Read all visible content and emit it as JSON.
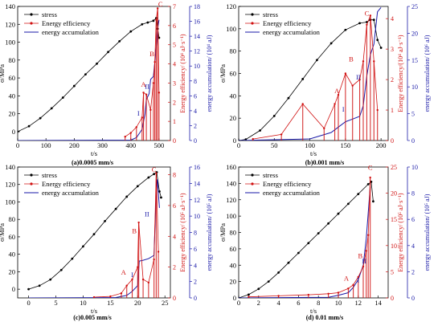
{
  "colors": {
    "stress": "#000000",
    "efficiency": "#d01010",
    "accumulation": "#1a1aa8"
  },
  "legend": [
    "stress",
    "Energy efficiency",
    "energy accumulation"
  ],
  "chart_data": [
    {
      "type": "line",
      "caption": "(a)0.0005 mm/s",
      "xlabel": "t/s",
      "ylabel": "σ/MPa",
      "y2label": "Energy efficiency/ (10⁴ aJ·s⁻¹)",
      "y3label": "energy accumulation/ (10⁴ aJ)",
      "xlim": [
        0,
        540
      ],
      "ylim": [
        -10,
        140
      ],
      "y2lim": [
        0,
        7
      ],
      "y3lim": [
        0,
        18
      ],
      "xticks": [
        0,
        100,
        200,
        300,
        400,
        500
      ],
      "yticks": [
        0,
        20,
        40,
        60,
        80,
        100,
        120,
        140
      ],
      "y2ticks": [
        0,
        1,
        2,
        3,
        4,
        5,
        6,
        7
      ],
      "y3ticks": [
        0,
        2,
        4,
        6,
        8,
        10,
        12,
        14,
        16,
        18
      ],
      "series": [
        {
          "name": "stress",
          "x": [
            0,
            40,
            80,
            120,
            160,
            200,
            240,
            280,
            320,
            360,
            400,
            440,
            460,
            480,
            490,
            495,
            500
          ],
          "y": [
            0,
            6,
            15,
            26,
            38,
            51,
            64,
            76,
            89,
            101,
            112,
            120,
            122,
            124,
            127,
            115,
            105
          ]
        },
        {
          "name": "energy accumulation",
          "x": [
            0,
            400,
            420,
            440,
            450,
            455,
            465,
            470,
            480,
            490,
            495,
            500
          ],
          "y": [
            0,
            0.05,
            0.4,
            1.5,
            3.5,
            5.5,
            6.3,
            8.2,
            8.6,
            12.5,
            15.0,
            16.2
          ]
        },
        {
          "name": "Energy efficiency",
          "x": [
            380,
            400,
            420,
            440,
            445,
            455,
            470,
            480,
            485,
            490,
            495,
            500
          ],
          "y": [
            0.2,
            0.4,
            0.7,
            1.2,
            2.5,
            2.4,
            1.6,
            3.0,
            4.1,
            6.3,
            6.9,
            2.5
          ]
        }
      ],
      "annotations": [
        {
          "label": "A",
          "x": 445,
          "y": 2.8,
          "color": "red"
        },
        {
          "label": "B",
          "x": 475,
          "y": 4.4,
          "color": "red"
        },
        {
          "label": "C",
          "x": 505,
          "y": 7.0,
          "color": "red"
        },
        {
          "label": "I",
          "x": 427,
          "y": 1.3,
          "color": "blue"
        },
        {
          "label": "II",
          "x": 458,
          "y": 2.7,
          "color": "blue"
        }
      ]
    },
    {
      "type": "line",
      "caption": "(b)0.001 mm/s",
      "xlabel": "t/s",
      "ylabel": "σ/MPa",
      "y2label": "Energy efficiency/(10⁴ aJ·s⁻¹)",
      "y3label": "energy accumulation/ (10⁶ aJ)",
      "xlim": [
        0,
        210
      ],
      "ylim": [
        0,
        120
      ],
      "y2lim": [
        0,
        4.4
      ],
      "y3lim": [
        0,
        25
      ],
      "xticks": [
        0,
        50,
        100,
        150,
        200
      ],
      "yticks": [
        0,
        20,
        40,
        60,
        80,
        100,
        120
      ],
      "y2ticks": [
        0,
        1,
        2,
        3,
        4
      ],
      "y3ticks": [
        0,
        5,
        10,
        15,
        20,
        25
      ],
      "series": [
        {
          "name": "stress",
          "x": [
            0,
            10,
            30,
            50,
            70,
            90,
            110,
            130,
            150,
            170,
            180,
            185,
            190,
            195,
            200
          ],
          "y": [
            0,
            1,
            9,
            22,
            38,
            55,
            72,
            87,
            99,
            105,
            106,
            108,
            108,
            90,
            83
          ]
        },
        {
          "name": "energy accumulation",
          "x": [
            0,
            100,
            130,
            140,
            150,
            160,
            170,
            175,
            180,
            185,
            190,
            195,
            200
          ],
          "y": [
            0,
            0.3,
            1.5,
            2.5,
            3.5,
            4.0,
            4.5,
            6.5,
            12.0,
            16.0,
            18.0,
            24.0,
            24.8
          ]
        },
        {
          "name": "Energy efficiency",
          "x": [
            20,
            60,
            90,
            120,
            135,
            140,
            150,
            160,
            170,
            175,
            180,
            185,
            190,
            195
          ],
          "y": [
            0.05,
            0.2,
            1.2,
            0.4,
            1.2,
            1.5,
            2.2,
            1.8,
            2.0,
            2.6,
            3.8,
            4.1,
            2.6,
            1.0
          ]
        }
      ],
      "annotations": [
        {
          "label": "A",
          "x": 138,
          "y": 1.55,
          "color": "red"
        },
        {
          "label": "B",
          "x": 158,
          "y": 2.6,
          "color": "red"
        },
        {
          "label": "C",
          "x": 180,
          "y": 4.1,
          "color": "red"
        },
        {
          "label": "I",
          "x": 147,
          "y": 0.95,
          "color": "blue"
        },
        {
          "label": "II",
          "x": 168,
          "y": 2.0,
          "color": "blue"
        }
      ]
    },
    {
      "type": "line",
      "caption": "(c)0.005 mm/s",
      "xlabel": "t/s",
      "ylabel": "σ/MPa",
      "y2label": "Energy efficiency/ (10⁵ aJ·s⁻¹)",
      "y3label": "energy accumulation/ (10⁵ aJ)",
      "xlim": [
        -2,
        26
      ],
      "ylim": [
        -10,
        140
      ],
      "y2lim": [
        0,
        8.5
      ],
      "y3lim": [
        0,
        16
      ],
      "xticks": [
        0,
        5,
        10,
        15,
        20,
        25
      ],
      "yticks": [
        0,
        20,
        40,
        60,
        80,
        100,
        120,
        140
      ],
      "y2ticks": [
        0,
        2,
        4,
        6,
        8
      ],
      "y3ticks": [
        0,
        2,
        4,
        6,
        8,
        10,
        12,
        14,
        16
      ],
      "series": [
        {
          "name": "stress",
          "x": [
            0,
            2,
            4,
            6,
            8,
            10,
            12,
            14,
            16,
            18,
            20,
            22,
            23,
            23.5,
            24,
            24.3
          ],
          "y": [
            0,
            4,
            11,
            22,
            35,
            49,
            63,
            78,
            92,
            106,
            118,
            128,
            132,
            134,
            112,
            105
          ]
        },
        {
          "name": "energy accumulation",
          "x": [
            0,
            16,
            18,
            19,
            20,
            20.3,
            21,
            22,
            23,
            23.3,
            23.6,
            24
          ],
          "y": [
            0,
            0.05,
            0.3,
            0.8,
            1.5,
            4.5,
            4.6,
            4.8,
            5.2,
            11.0,
            14.5,
            11.0
          ]
        },
        {
          "name": "Energy efficiency",
          "x": [
            12,
            15,
            17,
            18,
            19,
            20,
            20.2,
            21,
            22,
            23,
            23.4,
            23.8
          ],
          "y": [
            0.05,
            0.1,
            0.3,
            0.8,
            1.2,
            2.0,
            4.9,
            1.2,
            1.0,
            2.5,
            8.1,
            3.0
          ]
        }
      ],
      "annotations": [
        {
          "label": "A",
          "x": 17.4,
          "y": 1.5,
          "color": "red"
        },
        {
          "label": "B",
          "x": 19.4,
          "y": 4.2,
          "color": "red"
        },
        {
          "label": "C",
          "x": 23.0,
          "y": 8.2,
          "color": "red"
        },
        {
          "label": "I",
          "x": 19.0,
          "y": 1.35,
          "color": "blue"
        },
        {
          "label": "II",
          "x": 21.7,
          "y": 5.3,
          "color": "blue"
        }
      ]
    },
    {
      "type": "line",
      "caption": "(d) 0.01 mm/s",
      "xlabel": "t/s",
      "ylabel": "σ/MPa",
      "y2label": "Energy efficiency/ (10⁵ aJ·s⁻¹)",
      "y3label": "energy accumulation/ (10⁵ aJ)",
      "xlim": [
        0,
        15
      ],
      "ylim": [
        0,
        160
      ],
      "y2lim": [
        0,
        25
      ],
      "y3lim": [
        0,
        10
      ],
      "xticks": [
        0,
        2,
        4,
        6,
        8,
        10,
        12,
        14
      ],
      "yticks": [
        0,
        20,
        40,
        60,
        80,
        100,
        120,
        140,
        160
      ],
      "y2ticks": [
        0,
        5,
        10,
        15,
        20,
        25
      ],
      "y3ticks": [
        0,
        2,
        4,
        6,
        8,
        10
      ],
      "series": [
        {
          "name": "stress",
          "x": [
            0,
            1,
            2,
            3,
            4,
            5,
            6,
            7,
            8,
            9,
            10,
            11,
            12,
            13,
            13.3,
            13.5
          ],
          "y": [
            0,
            4,
            11,
            20,
            31,
            43,
            55,
            67,
            79,
            91,
            103,
            115,
            127,
            139,
            142,
            118
          ]
        },
        {
          "name": "energy accumulation",
          "x": [
            0,
            9,
            10,
            11,
            11.5,
            12,
            12.5,
            12.8,
            13,
            13.2
          ],
          "y": [
            0,
            0.05,
            0.2,
            0.4,
            0.8,
            1.4,
            2.5,
            4.5,
            6.5,
            8.5
          ]
        },
        {
          "name": "Energy efficiency",
          "x": [
            1,
            4,
            7,
            9,
            10,
            11,
            11.5,
            12,
            12.5,
            12.8,
            13,
            13.2
          ],
          "y": [
            0.2,
            0.4,
            0.6,
            0.8,
            1.0,
            1.8,
            2.5,
            4.0,
            6.0,
            9.0,
            12.0,
            23.0
          ]
        }
      ],
      "annotations": [
        {
          "label": "A",
          "x": 10.8,
          "y": 3.3,
          "color": "red"
        },
        {
          "label": "B",
          "x": 12.2,
          "y": 7.6,
          "color": "red"
        },
        {
          "label": "C",
          "x": 13.2,
          "y": 24.5,
          "color": "red"
        },
        {
          "label": "I",
          "x": 12.0,
          "y": 3.0,
          "color": "blue"
        },
        {
          "label": "II",
          "x": 12.6,
          "y": 6.6,
          "color": "blue"
        }
      ]
    }
  ]
}
